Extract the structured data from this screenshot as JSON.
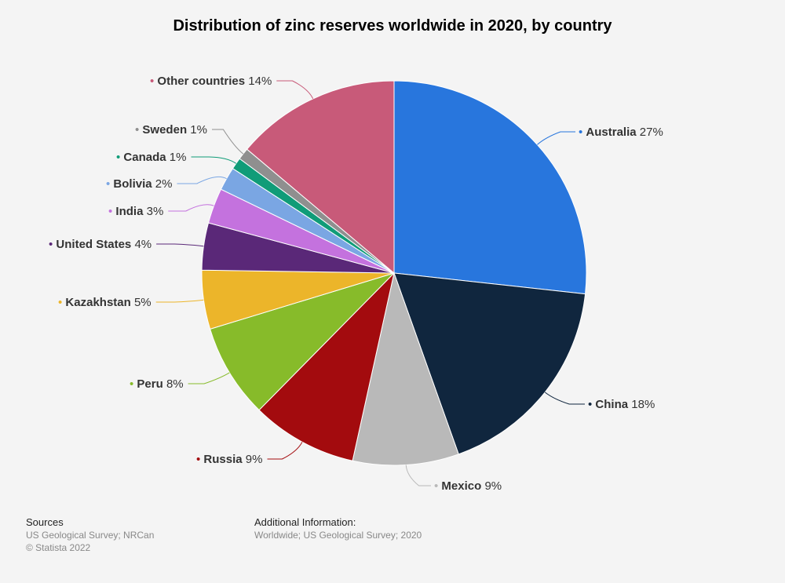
{
  "chart_data": {
    "type": "pie",
    "title": "Distribution of zinc reserves worldwide in 2020, by country",
    "slices": [
      {
        "label": "Australia",
        "value": 27,
        "display": "27%",
        "color": "#2876dd"
      },
      {
        "label": "China",
        "value": 18,
        "display": "18%",
        "color": "#10263e"
      },
      {
        "label": "Mexico",
        "value": 9,
        "display": "9%",
        "color": "#b9b9b9"
      },
      {
        "label": "Russia",
        "value": 9,
        "display": "9%",
        "color": "#a30b0e"
      },
      {
        "label": "Peru",
        "value": 8,
        "display": "8%",
        "color": "#87bb2a"
      },
      {
        "label": "Kazakhstan",
        "value": 5,
        "display": "5%",
        "color": "#ecb52a"
      },
      {
        "label": "United States",
        "value": 4,
        "display": "4%",
        "color": "#5a2878"
      },
      {
        "label": "India",
        "value": 3,
        "display": "3%",
        "color": "#c472de"
      },
      {
        "label": "Bolivia",
        "value": 2,
        "display": "2%",
        "color": "#7aa6e3"
      },
      {
        "label": "Canada",
        "value": 1,
        "display": "1%",
        "color": "#109c78"
      },
      {
        "label": "Sweden",
        "value": 1,
        "display": "1%",
        "color": "#8f8f8f"
      },
      {
        "label": "Other countries",
        "value": 14,
        "display": "14%",
        "color": "#c85a79"
      }
    ]
  },
  "footer": {
    "sources_heading": "Sources",
    "sources_line1": "US Geological Survey; NRCan",
    "sources_line2": "© Statista 2022",
    "additional_heading": "Additional Information:",
    "additional_line1": "Worldwide; US Geological Survey; 2020"
  }
}
